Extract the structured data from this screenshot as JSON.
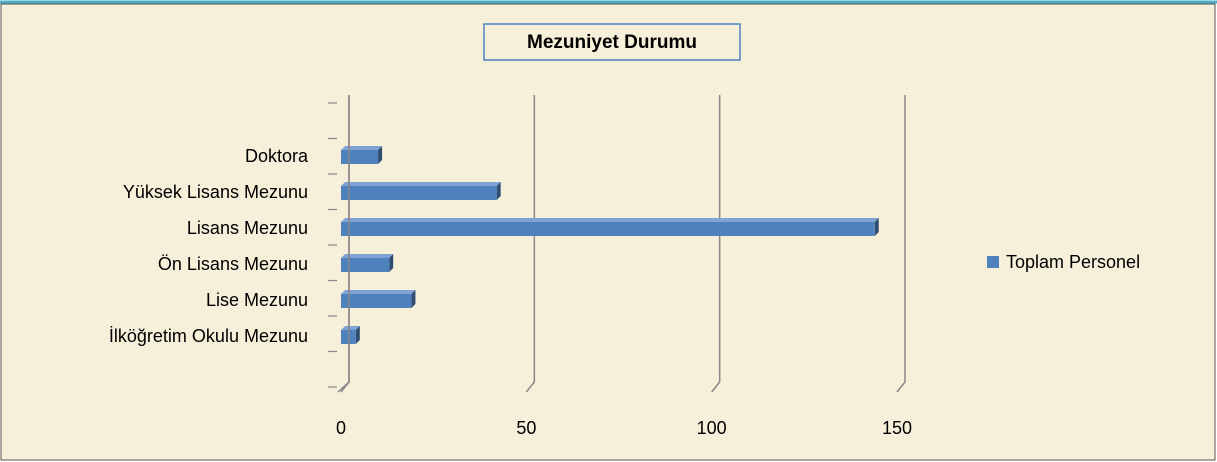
{
  "chart_data": {
    "type": "bar",
    "orientation": "horizontal",
    "title": "Mezuniyet Durumu",
    "categories": [
      "Doktora",
      "Yüksek Lisans Mezunu",
      "Lisans Mezunu",
      "Ön Lisans Mezunu",
      "Lise Mezunu",
      "İlköğretim Okulu Mezunu"
    ],
    "series": [
      {
        "name": "Toplam Personel",
        "color": "#4f81bd",
        "values": [
          10,
          42,
          144,
          13,
          19,
          4
        ]
      }
    ],
    "xlim": [
      0,
      150
    ],
    "xticks": [
      0,
      50,
      100,
      150
    ],
    "grid": true,
    "legend": "right"
  }
}
